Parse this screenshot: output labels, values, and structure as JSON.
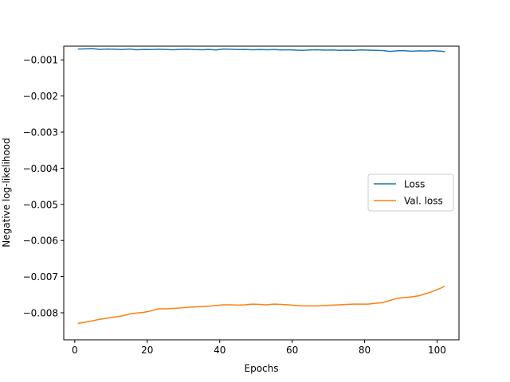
{
  "chart_data": {
    "type": "line",
    "title": "",
    "xlabel": "Epochs",
    "ylabel": "Negative log-likelihood",
    "xlim": [
      -3.05,
      106.05
    ],
    "ylim": [
      -0.00875,
      -0.00062
    ],
    "xticks": [
      0,
      20,
      40,
      60,
      80,
      100
    ],
    "xtick_labels": [
      "0",
      "20",
      "40",
      "60",
      "80",
      "100"
    ],
    "yticks": [
      -0.001,
      -0.002,
      -0.003,
      -0.004,
      -0.005,
      -0.006,
      -0.007,
      -0.008
    ],
    "ytick_labels": [
      "−0.001",
      "−0.002",
      "−0.003",
      "−0.004",
      "−0.005",
      "−0.006",
      "−0.007",
      "−0.008"
    ],
    "grid": false,
    "legend": {
      "position": "center-right"
    },
    "x": [
      1,
      3,
      5,
      7,
      9,
      11,
      13,
      15,
      17,
      19,
      21,
      23,
      25,
      27,
      29,
      31,
      33,
      35,
      37,
      39,
      41,
      43,
      45,
      47,
      49,
      51,
      53,
      55,
      57,
      59,
      61,
      63,
      65,
      67,
      69,
      71,
      73,
      75,
      77,
      79,
      81,
      83,
      85,
      87,
      89,
      91,
      93,
      95,
      97,
      99,
      101,
      102
    ],
    "series": [
      {
        "name": "Loss",
        "color": "#1f77b4",
        "values": [
          -0.0007,
          -0.000695,
          -0.00069,
          -0.00071,
          -0.0007,
          -0.000705,
          -0.000715,
          -0.0007,
          -0.00072,
          -0.00071,
          -0.000715,
          -0.000705,
          -0.00071,
          -0.00072,
          -0.00071,
          -0.000705,
          -0.000715,
          -0.00072,
          -0.00071,
          -0.000725,
          -0.0007,
          -0.000705,
          -0.000715,
          -0.00071,
          -0.00072,
          -0.000715,
          -0.00072,
          -0.000715,
          -0.000725,
          -0.00072,
          -0.00073,
          -0.000735,
          -0.000725,
          -0.00072,
          -0.00073,
          -0.000725,
          -0.000735,
          -0.00073,
          -0.000735,
          -0.000725,
          -0.00073,
          -0.000735,
          -0.00074,
          -0.000765,
          -0.00075,
          -0.000745,
          -0.00076,
          -0.00075,
          -0.000755,
          -0.000745,
          -0.00076,
          -0.00077
        ]
      },
      {
        "name": "Val. loss",
        "color": "#ff7f0e",
        "values": [
          -0.00829,
          -0.00826,
          -0.00822,
          -0.00818,
          -0.00815,
          -0.00812,
          -0.00809,
          -0.00804,
          -0.00801,
          -0.00799,
          -0.00795,
          -0.00789,
          -0.00789,
          -0.00788,
          -0.00787,
          -0.00785,
          -0.00784,
          -0.00783,
          -0.00782,
          -0.0078,
          -0.00778,
          -0.00778,
          -0.00779,
          -0.00778,
          -0.00776,
          -0.00777,
          -0.00778,
          -0.00776,
          -0.00777,
          -0.00778,
          -0.0078,
          -0.00781,
          -0.00781,
          -0.00781,
          -0.0078,
          -0.00779,
          -0.00778,
          -0.00777,
          -0.00776,
          -0.00776,
          -0.00776,
          -0.00774,
          -0.00772,
          -0.00766,
          -0.0076,
          -0.00758,
          -0.00756,
          -0.00753,
          -0.00747,
          -0.0074,
          -0.00732,
          -0.00727
        ]
      }
    ]
  }
}
